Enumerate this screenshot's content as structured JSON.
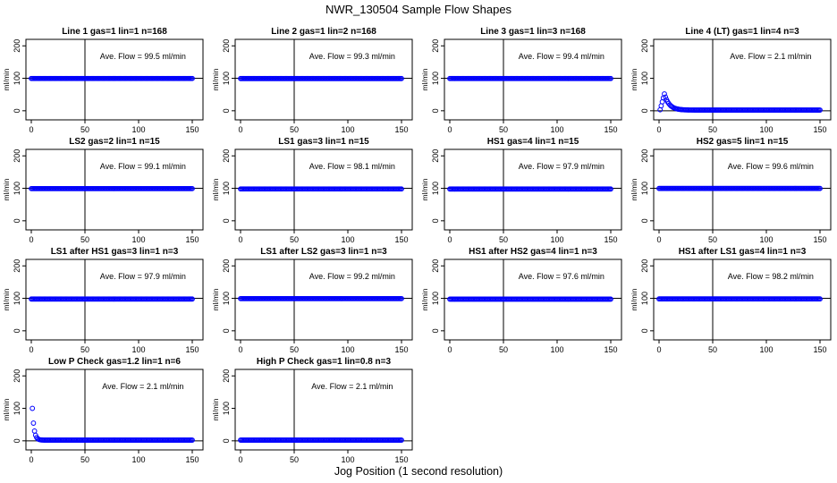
{
  "figure": {
    "title": "NWR_130504  Sample Flow Shapes",
    "xlabel": "Jog Position (1 second resolution)"
  },
  "colors": {
    "points": "#0000ff",
    "axis": "#000000",
    "background": "#ffffff"
  },
  "chart_data": [
    {
      "type": "scatter",
      "title": "Line 1 gas=1 lin=1 n=168",
      "ylabel": "ml/min",
      "annotation": "Ave. Flow =  99.5  ml/min",
      "vline": 50,
      "hline": 100,
      "xlim": [
        0,
        150
      ],
      "ylim": [
        0,
        200
      ],
      "xticks": [
        "0",
        "50",
        "100",
        "150"
      ],
      "yticks": [
        "0",
        "100",
        "200"
      ],
      "shape": "flat",
      "steady": 99.5,
      "start": 99.5,
      "x_range": [
        0,
        150
      ]
    },
    {
      "type": "scatter",
      "title": "Line 2 gas=1 lin=2 n=168",
      "ylabel": "ml/min",
      "annotation": "Ave. Flow =  99.3  ml/min",
      "vline": 50,
      "hline": 100,
      "xlim": [
        0,
        150
      ],
      "ylim": [
        0,
        200
      ],
      "xticks": [
        "0",
        "50",
        "100",
        "150"
      ],
      "yticks": [
        "0",
        "100",
        "200"
      ],
      "shape": "flat",
      "steady": 99.3,
      "start": 99.3,
      "x_range": [
        0,
        150
      ]
    },
    {
      "type": "scatter",
      "title": "Line 3 gas=1 lin=3 n=168",
      "ylabel": "ml/min",
      "annotation": "Ave. Flow =  99.4  ml/min",
      "vline": 50,
      "hline": 100,
      "xlim": [
        0,
        150
      ],
      "ylim": [
        0,
        200
      ],
      "xticks": [
        "0",
        "50",
        "100",
        "150"
      ],
      "yticks": [
        "0",
        "100",
        "200"
      ],
      "shape": "flat",
      "steady": 99.4,
      "start": 99.4,
      "x_range": [
        0,
        150
      ]
    },
    {
      "type": "scatter",
      "title": "Line 4 (LT) gas=1 lin=4 n=3",
      "ylabel": "ml/min",
      "annotation": "Ave. Flow =  2.1  ml/min",
      "vline": 50,
      "hline": 0,
      "xlim": [
        0,
        150
      ],
      "ylim": [
        0,
        200
      ],
      "xticks": [
        "0",
        "50",
        "100",
        "150"
      ],
      "yticks": [
        "0",
        "100",
        "200"
      ],
      "shape": "spike",
      "steady": 2.1,
      "start": 3,
      "peak": 52,
      "peak_x": 5,
      "x_range": [
        1,
        150
      ]
    },
    {
      "type": "scatter",
      "title": "LS2 gas=2 lin=1 n=15",
      "ylabel": "ml/min",
      "annotation": "Ave. Flow =  99.1  ml/min",
      "vline": 50,
      "hline": 100,
      "xlim": [
        0,
        150
      ],
      "ylim": [
        0,
        200
      ],
      "xticks": [
        "0",
        "50",
        "100",
        "150"
      ],
      "yticks": [
        "0",
        "100",
        "200"
      ],
      "shape": "flat",
      "steady": 99.1,
      "start": 99.1,
      "x_range": [
        0,
        150
      ]
    },
    {
      "type": "scatter",
      "title": "LS1 gas=3 lin=1 n=15",
      "ylabel": "ml/min",
      "annotation": "Ave. Flow =  98.1  ml/min",
      "vline": 50,
      "hline": 100,
      "xlim": [
        0,
        150
      ],
      "ylim": [
        0,
        200
      ],
      "xticks": [
        "0",
        "50",
        "100",
        "150"
      ],
      "yticks": [
        "0",
        "100",
        "200"
      ],
      "shape": "flat",
      "steady": 98.1,
      "start": 98.1,
      "x_range": [
        0,
        150
      ]
    },
    {
      "type": "scatter",
      "title": "HS1 gas=4 lin=1 n=15",
      "ylabel": "ml/min",
      "annotation": "Ave. Flow =  97.9  ml/min",
      "vline": 50,
      "hline": 100,
      "xlim": [
        0,
        150
      ],
      "ylim": [
        0,
        200
      ],
      "xticks": [
        "0",
        "50",
        "100",
        "150"
      ],
      "yticks": [
        "0",
        "100",
        "200"
      ],
      "shape": "flat",
      "steady": 97.9,
      "start": 97.9,
      "x_range": [
        0,
        150
      ]
    },
    {
      "type": "scatter",
      "title": "HS2 gas=5 lin=1 n=15",
      "ylabel": "ml/min",
      "annotation": "Ave. Flow =  99.6  ml/min",
      "vline": 50,
      "hline": 100,
      "xlim": [
        0,
        150
      ],
      "ylim": [
        0,
        200
      ],
      "xticks": [
        "0",
        "50",
        "100",
        "150"
      ],
      "yticks": [
        "0",
        "100",
        "200"
      ],
      "shape": "flat",
      "steady": 99.6,
      "start": 99.6,
      "x_range": [
        0,
        150
      ]
    },
    {
      "type": "scatter",
      "title": "LS1 after HS1 gas=3 lin=1 n=3",
      "ylabel": "ml/min",
      "annotation": "Ave. Flow =  97.9  ml/min",
      "vline": 50,
      "hline": 100,
      "xlim": [
        0,
        150
      ],
      "ylim": [
        0,
        200
      ],
      "xticks": [
        "0",
        "50",
        "100",
        "150"
      ],
      "yticks": [
        "0",
        "100",
        "200"
      ],
      "shape": "flat",
      "steady": 97.9,
      "start": 97.9,
      "x_range": [
        0,
        150
      ]
    },
    {
      "type": "scatter",
      "title": "LS1 after LS2 gas=3 lin=1 n=3",
      "ylabel": "ml/min",
      "annotation": "Ave. Flow =  99.2  ml/min",
      "vline": 50,
      "hline": 100,
      "xlim": [
        0,
        150
      ],
      "ylim": [
        0,
        200
      ],
      "xticks": [
        "0",
        "50",
        "100",
        "150"
      ],
      "yticks": [
        "0",
        "100",
        "200"
      ],
      "shape": "flat",
      "steady": 99.2,
      "start": 99.2,
      "x_range": [
        0,
        150
      ]
    },
    {
      "type": "scatter",
      "title": "HS1 after HS2 gas=4 lin=1 n=3",
      "ylabel": "ml/min",
      "annotation": "Ave. Flow =  97.6  ml/min",
      "vline": 50,
      "hline": 100,
      "xlim": [
        0,
        150
      ],
      "ylim": [
        0,
        200
      ],
      "xticks": [
        "0",
        "50",
        "100",
        "150"
      ],
      "yticks": [
        "0",
        "100",
        "200"
      ],
      "shape": "flat",
      "steady": 97.6,
      "start": 97.6,
      "x_range": [
        0,
        150
      ]
    },
    {
      "type": "scatter",
      "title": "HS1 after LS1 gas=4 lin=1 n=3",
      "ylabel": "ml/min",
      "annotation": "Ave. Flow =  98.2  ml/min",
      "vline": 50,
      "hline": 100,
      "xlim": [
        0,
        150
      ],
      "ylim": [
        0,
        200
      ],
      "xticks": [
        "0",
        "50",
        "100",
        "150"
      ],
      "yticks": [
        "0",
        "100",
        "200"
      ],
      "shape": "flat",
      "steady": 98.2,
      "start": 98.2,
      "x_range": [
        0,
        150
      ]
    },
    {
      "type": "scatter",
      "title": "Low P Check gas=1.2 lin=1 n=6",
      "ylabel": "ml/min",
      "annotation": "Ave. Flow =  2.1  ml/min",
      "vline": 50,
      "hline": 0,
      "xlim": [
        0,
        150
      ],
      "ylim": [
        0,
        200
      ],
      "xticks": [
        "0",
        "50",
        "100",
        "150"
      ],
      "yticks": [
        "0",
        "100",
        "200"
      ],
      "shape": "decay",
      "steady": 2.1,
      "start": 100,
      "x_range": [
        1,
        150
      ]
    },
    {
      "type": "scatter",
      "title": "High P Check gas=1 lin=0.8 n=3",
      "ylabel": "ml/min",
      "annotation": "Ave. Flow =  2.1  ml/min",
      "vline": 50,
      "hline": 0,
      "xlim": [
        0,
        150
      ],
      "ylim": [
        0,
        200
      ],
      "xticks": [
        "0",
        "50",
        "100",
        "150"
      ],
      "yticks": [
        "0",
        "100",
        "200"
      ],
      "shape": "flat",
      "steady": 2.1,
      "start": 2.1,
      "x_range": [
        0,
        150
      ]
    }
  ]
}
